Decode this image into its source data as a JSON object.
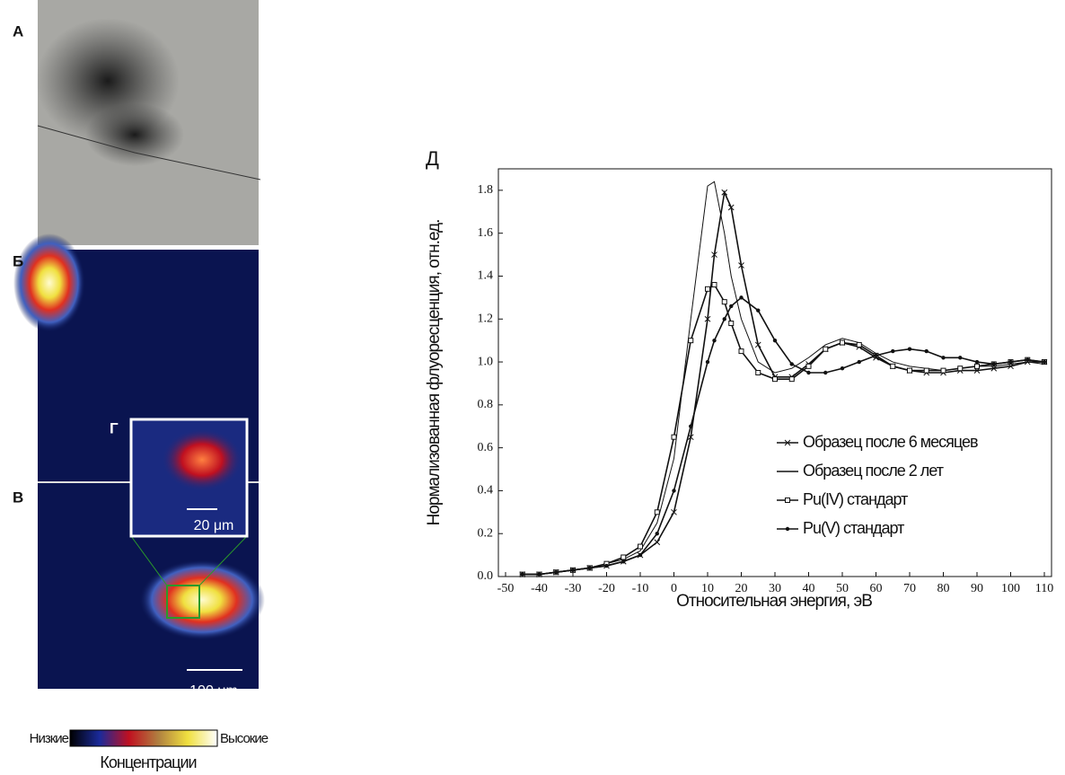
{
  "panels": {
    "labels": [
      "А",
      "Б",
      "В",
      "Г"
    ],
    "scale_inset": "20 μm",
    "scale_main": "100 μm",
    "colorbar": {
      "low": "Низкие",
      "high": "Высокие",
      "title": "Концентрации"
    }
  },
  "chart_data": {
    "type": "line",
    "title": "Д",
    "xlabel": "Относительная энергия, эВ",
    "ylabel": "Нормализованная флуоресценция, отн.ед.",
    "xlim": [
      -50,
      110
    ],
    "ylim": [
      0,
      1.9
    ],
    "xticks": [
      -50,
      -40,
      -30,
      -20,
      -10,
      0,
      10,
      20,
      30,
      40,
      50,
      60,
      70,
      80,
      90,
      100,
      110
    ],
    "yticks": [
      {
        "value": 0,
        "label": "0.0"
      },
      0.2,
      0.4,
      0.6,
      0.8,
      {
        "value": 1,
        "label": "1.0"
      },
      1.2,
      1.4,
      1.6,
      1.8
    ],
    "x": [
      -45,
      -40,
      -35,
      -30,
      -25,
      -20,
      -15,
      -10,
      -5,
      0,
      5,
      10,
      12,
      15,
      17,
      20,
      25,
      30,
      35,
      40,
      45,
      50,
      55,
      60,
      65,
      70,
      75,
      80,
      85,
      90,
      95,
      100,
      105,
      110
    ],
    "series": [
      {
        "name": "Образец после 6 месяцев",
        "color": "#111111",
        "marker": "x",
        "values": [
          0.01,
          0.01,
          0.02,
          0.03,
          0.04,
          0.05,
          0.07,
          0.1,
          0.16,
          0.3,
          0.65,
          1.2,
          1.5,
          1.79,
          1.72,
          1.45,
          1.08,
          0.93,
          0.93,
          0.99,
          1.06,
          1.09,
          1.07,
          1.02,
          0.98,
          0.96,
          0.95,
          0.95,
          0.96,
          0.96,
          0.97,
          0.98,
          1.0,
          1.0
        ]
      },
      {
        "name": "Образец после 2 лет",
        "color": "#111111",
        "marker": "none",
        "values": [
          0.01,
          0.01,
          0.02,
          0.03,
          0.04,
          0.06,
          0.08,
          0.12,
          0.25,
          0.55,
          1.2,
          1.82,
          1.84,
          1.6,
          1.4,
          1.2,
          1.0,
          0.95,
          0.97,
          1.02,
          1.08,
          1.11,
          1.09,
          1.04,
          1.0,
          0.98,
          0.97,
          0.96,
          0.97,
          0.98,
          0.98,
          0.99,
          1.0,
          0.99
        ]
      },
      {
        "name": "Pu(IV) стандарт",
        "color": "#111111",
        "marker": "square",
        "values": [
          0.01,
          0.01,
          0.02,
          0.03,
          0.04,
          0.06,
          0.09,
          0.14,
          0.3,
          0.65,
          1.1,
          1.34,
          1.36,
          1.28,
          1.18,
          1.05,
          0.95,
          0.92,
          0.92,
          0.98,
          1.06,
          1.09,
          1.08,
          1.03,
          0.98,
          0.96,
          0.96,
          0.96,
          0.97,
          0.98,
          0.99,
          1.0,
          1.01,
          1.0
        ]
      },
      {
        "name": "Pu(V) стандарт",
        "color": "#111111",
        "marker": "circle",
        "values": [
          0.01,
          0.01,
          0.02,
          0.03,
          0.04,
          0.05,
          0.07,
          0.1,
          0.2,
          0.4,
          0.7,
          1.0,
          1.1,
          1.2,
          1.26,
          1.3,
          1.24,
          1.1,
          0.99,
          0.95,
          0.95,
          0.97,
          1.0,
          1.03,
          1.05,
          1.06,
          1.05,
          1.02,
          1.02,
          1.0,
          0.99,
          1.0,
          1.01,
          1.0
        ]
      }
    ]
  }
}
